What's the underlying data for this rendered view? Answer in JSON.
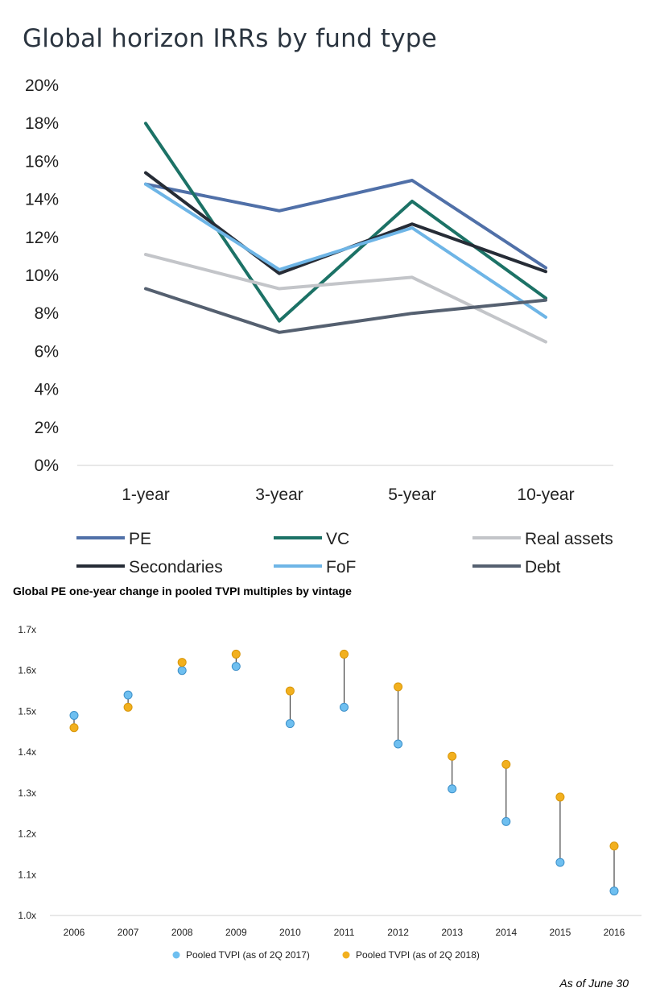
{
  "footnote": "As of June 30",
  "chart_data": [
    {
      "type": "line",
      "title": "Global horizon IRRs by fund type",
      "xlabel": "",
      "ylabel": "",
      "categories": [
        "1-year",
        "3-year",
        "5-year",
        "10-year"
      ],
      "ylim": [
        0,
        20
      ],
      "y_ticks": [
        "0%",
        "2%",
        "4%",
        "6%",
        "8%",
        "10%",
        "12%",
        "14%",
        "16%",
        "18%",
        "20%"
      ],
      "grid": false,
      "legend_position": "bottom",
      "series": [
        {
          "name": "PE",
          "color": "#5070a8",
          "values": [
            14.8,
            13.4,
            15.0,
            10.4
          ]
        },
        {
          "name": "VC",
          "color": "#1c7266",
          "values": [
            18.0,
            7.6,
            13.9,
            8.8
          ]
        },
        {
          "name": "Real assets",
          "color": "#c3c5c9",
          "values": [
            11.1,
            9.3,
            9.9,
            6.5
          ]
        },
        {
          "name": "Secondaries",
          "color": "#262c36",
          "values": [
            15.4,
            10.1,
            12.7,
            10.2
          ]
        },
        {
          "name": "FoF",
          "color": "#6eb5e6",
          "values": [
            14.8,
            10.3,
            12.5,
            7.8
          ]
        },
        {
          "name": "Debt",
          "color": "#556070",
          "values": [
            9.3,
            7.0,
            8.0,
            8.7
          ]
        }
      ]
    },
    {
      "type": "scatter",
      "title": "Global PE one-year change in pooled TVPI multiples by vintage",
      "xlabel": "",
      "ylabel": "",
      "categories": [
        "2006",
        "2007",
        "2008",
        "2009",
        "2010",
        "2011",
        "2012",
        "2013",
        "2014",
        "2015",
        "2016"
      ],
      "ylim": [
        1.0,
        1.7
      ],
      "y_ticks": [
        "1.0x",
        "1.1x",
        "1.2x",
        "1.3x",
        "1.4x",
        "1.5x",
        "1.6x",
        "1.7x"
      ],
      "grid": false,
      "legend_position": "bottom",
      "connectors": true,
      "series": [
        {
          "name": "Pooled TVPI (as of 2Q 2017)",
          "color": "#6ebff0",
          "values": [
            1.49,
            1.54,
            1.6,
            1.61,
            1.47,
            1.51,
            1.42,
            1.31,
            1.23,
            1.13,
            1.06
          ]
        },
        {
          "name": "Pooled TVPI (as of 2Q 2018)",
          "color": "#f2b01e",
          "values": [
            1.46,
            1.51,
            1.62,
            1.64,
            1.55,
            1.64,
            1.56,
            1.39,
            1.37,
            1.29,
            1.17
          ]
        }
      ]
    }
  ]
}
